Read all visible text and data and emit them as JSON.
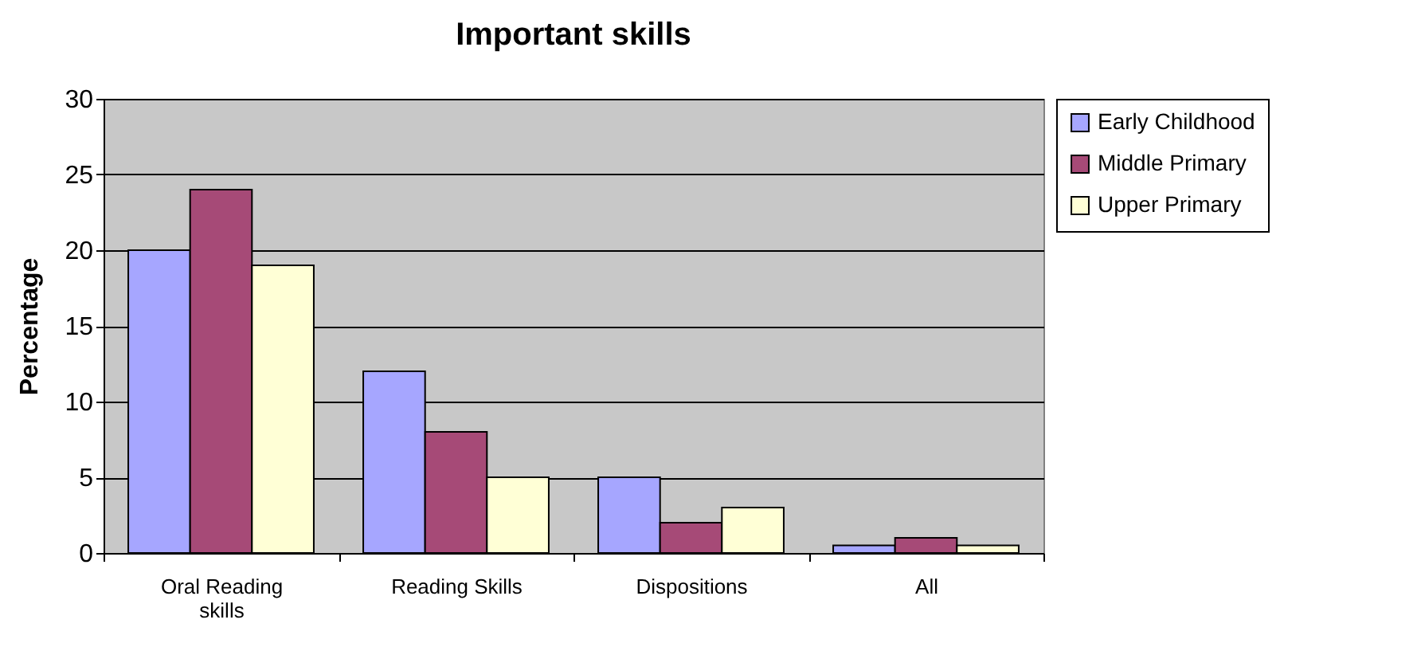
{
  "chart_data": {
    "type": "bar",
    "title": "Important skills",
    "ylabel": "Percentage",
    "categories": [
      "Oral Reading skills",
      "Reading Skills",
      "Dispositions",
      "All"
    ],
    "series": [
      {
        "name": "Early Childhood",
        "color": "#a6a6ff",
        "values": [
          20,
          12,
          5,
          0.5
        ]
      },
      {
        "name": "Middle Primary",
        "color": "#a64a77",
        "values": [
          24,
          8,
          2,
          1
        ]
      },
      {
        "name": "Upper Primary",
        "color": "#ffffd6",
        "values": [
          19,
          5,
          3,
          0.5
        ]
      }
    ],
    "ylim": [
      0,
      30
    ],
    "yticks": [
      0,
      5,
      10,
      15,
      20,
      25,
      30
    ],
    "grid": "y",
    "legend": "right"
  }
}
